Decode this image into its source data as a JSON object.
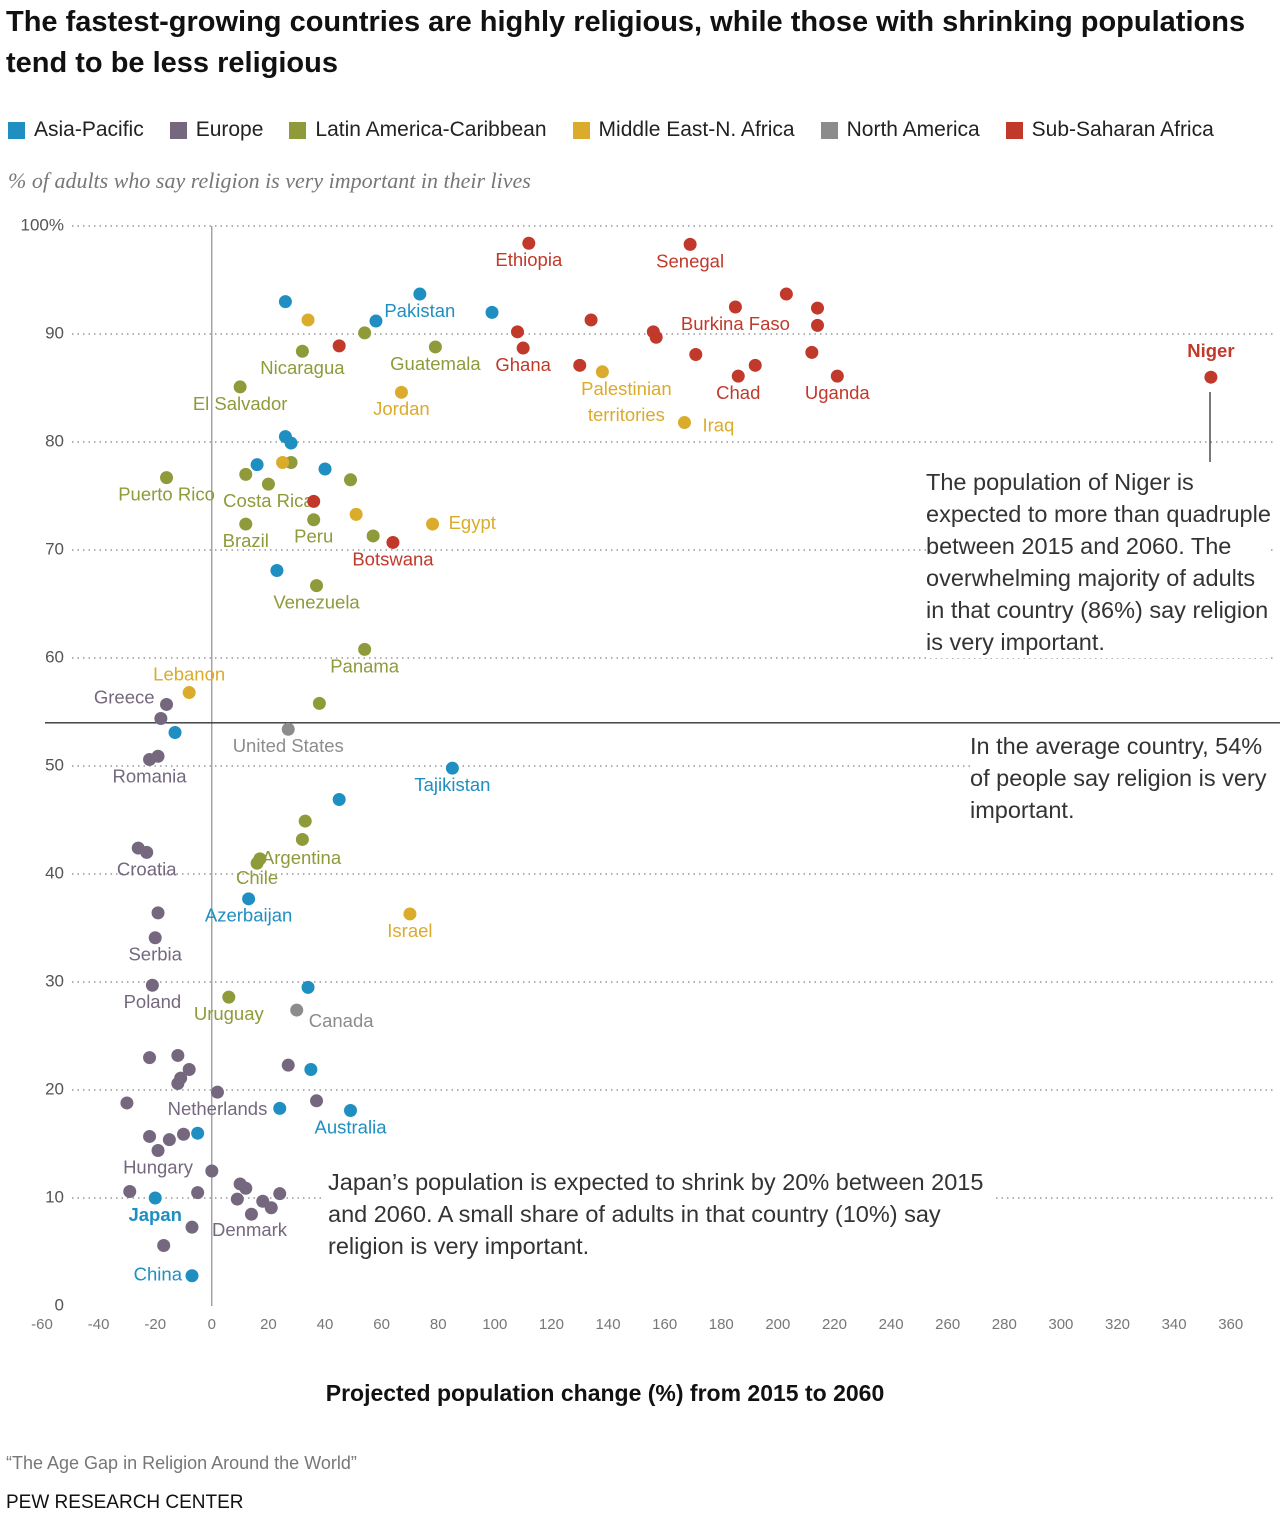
{
  "chart_data": {
    "type": "scatter",
    "title": "The fastest-growing countries are highly religious, while those with shrinking populations tend to be less religious",
    "subtitle": "% of adults who say religion is very important in their lives",
    "x_label": "Projected population change (%) from 2015 to 2060",
    "xlim": [
      -60,
      376
    ],
    "ylim": [
      0,
      100
    ],
    "xticks": [
      -60,
      -40,
      -20,
      0,
      20,
      40,
      60,
      80,
      100,
      120,
      140,
      160,
      180,
      200,
      220,
      240,
      260,
      280,
      300,
      320,
      340,
      360
    ],
    "yticks": [
      0,
      10,
      20,
      30,
      40,
      50,
      60,
      70,
      80,
      90,
      {
        "value": 100,
        "label": "100%"
      }
    ],
    "grid": true,
    "average": 54,
    "series": [
      {
        "name": "Asia-Pacific",
        "color": "#1f8fc1",
        "x": [
          26,
          73.5,
          58,
          99,
          26,
          28,
          16,
          40,
          23,
          -13,
          85,
          45,
          13,
          34,
          35,
          49,
          24,
          -5,
          -20,
          -7
        ],
        "y": [
          93,
          93.7,
          91.2,
          92,
          80.5,
          79.9,
          77.9,
          77.5,
          68.1,
          53.1,
          49.8,
          46.9,
          37.7,
          29.5,
          21.9,
          18.1,
          18.3,
          16,
          10,
          2.8
        ],
        "labels": [
          null,
          "Pakistan",
          null,
          null,
          null,
          null,
          null,
          null,
          null,
          null,
          "Tajikistan",
          null,
          "Azerbaijan",
          null,
          null,
          "Australia",
          null,
          null,
          "Japan",
          "China"
        ]
      },
      {
        "name": "Europe",
        "color": "#75687e",
        "x": [
          -16,
          -18,
          -22,
          -19,
          -26,
          -23,
          -19,
          -20,
          -21,
          -22,
          -12,
          -8,
          -11,
          -12,
          -30,
          2,
          -22,
          -15,
          -10,
          -19,
          0,
          -29,
          -5,
          10,
          12,
          9,
          18,
          24,
          21,
          14,
          -7,
          -17,
          37,
          27
        ],
        "y": [
          55.7,
          54.4,
          50.6,
          50.9,
          42.4,
          42.0,
          36.4,
          34.1,
          29.7,
          23.0,
          23.2,
          21.9,
          21.1,
          20.6,
          18.8,
          19.8,
          15.7,
          15.4,
          15.9,
          14.4,
          12.5,
          10.6,
          10.5,
          11.3,
          10.9,
          9.9,
          9.7,
          10.4,
          9.1,
          8.5,
          7.3,
          5.6,
          19.0,
          22.3
        ],
        "labels": [
          "Greece",
          null,
          "Romania",
          null,
          null,
          "Croatia",
          null,
          "Serbia",
          "Poland",
          null,
          null,
          null,
          null,
          null,
          null,
          "Netherlands",
          null,
          null,
          null,
          "Hungary",
          null,
          null,
          null,
          null,
          null,
          null,
          null,
          null,
          null,
          null,
          "Denmark",
          null,
          null,
          null
        ]
      },
      {
        "name": "Latin America-Caribbean",
        "color": "#8f9a3a",
        "x": [
          32,
          54,
          79,
          10,
          -16,
          12,
          20,
          28,
          49,
          12,
          36,
          57,
          37,
          54,
          38,
          33,
          32,
          17,
          16,
          6
        ],
        "y": [
          88.4,
          90.1,
          88.8,
          85.1,
          76.7,
          77.0,
          76.1,
          78.1,
          76.5,
          72.4,
          72.8,
          71.3,
          66.7,
          60.8,
          55.8,
          44.9,
          43.2,
          41.4,
          41.0,
          28.6
        ],
        "labels": [
          "Nicaragua",
          null,
          "Guatemala",
          "El Salvador",
          "Puerto Rico",
          null,
          "Costa Rica",
          null,
          null,
          "Brazil",
          "Peru",
          null,
          "Venezuela",
          "Panama",
          null,
          null,
          null,
          "Argentina",
          "Chile",
          "Uruguay"
        ]
      },
      {
        "name": "Middle East-N. Africa",
        "color": "#dbab2b",
        "x": [
          34,
          67,
          138,
          167,
          25,
          51,
          78,
          -8,
          70
        ],
        "y": [
          91.3,
          84.6,
          86.5,
          81.8,
          78.1,
          73.3,
          72.4,
          56.8,
          36.3
        ],
        "labels": [
          null,
          "Jordan",
          "Palestinian territories",
          "Iraq",
          null,
          null,
          "Egypt",
          "Lebanon",
          "Israel"
        ]
      },
      {
        "name": "North America",
        "color": "#8c8c8c",
        "x": [
          27,
          30
        ],
        "y": [
          53.4,
          27.4
        ],
        "labels": [
          "United States",
          "Canada"
        ]
      },
      {
        "name": "Sub-Saharan Africa",
        "color": "#c1392b",
        "x": [
          112,
          169,
          45,
          108,
          110,
          134,
          156,
          157,
          130,
          171,
          185,
          203,
          214,
          214,
          212,
          221,
          186,
          192,
          353,
          36,
          64
        ],
        "y": [
          98.4,
          98.3,
          88.9,
          90.2,
          88.7,
          91.3,
          90.2,
          89.7,
          87.1,
          88.1,
          92.5,
          93.7,
          92.4,
          90.8,
          88.3,
          86.1,
          86.1,
          87.1,
          86,
          74.5,
          70.7
        ],
        "labels": [
          "Ethiopia",
          "Senegal",
          null,
          null,
          "Ghana",
          null,
          null,
          null,
          null,
          null,
          "Burkina Faso",
          null,
          null,
          null,
          null,
          "Uganda",
          "Chad",
          null,
          "Niger",
          null,
          "Botswana"
        ]
      }
    ],
    "annotations": [
      "The population of Niger is expected to more than quadruple between 2015 and 2060. The overwhelming majority of adults in that country (86%) say religion is very important.",
      "In the average country, 54% of people say religion is very important.",
      "Japan’s population is expected to shrink by 20% between 2015 and 2060. A small share of adults in that country (10%) say religion is very important."
    ],
    "source": "“The Age Gap in Religion Around the World”",
    "credit": "PEW RESEARCH CENTER"
  }
}
